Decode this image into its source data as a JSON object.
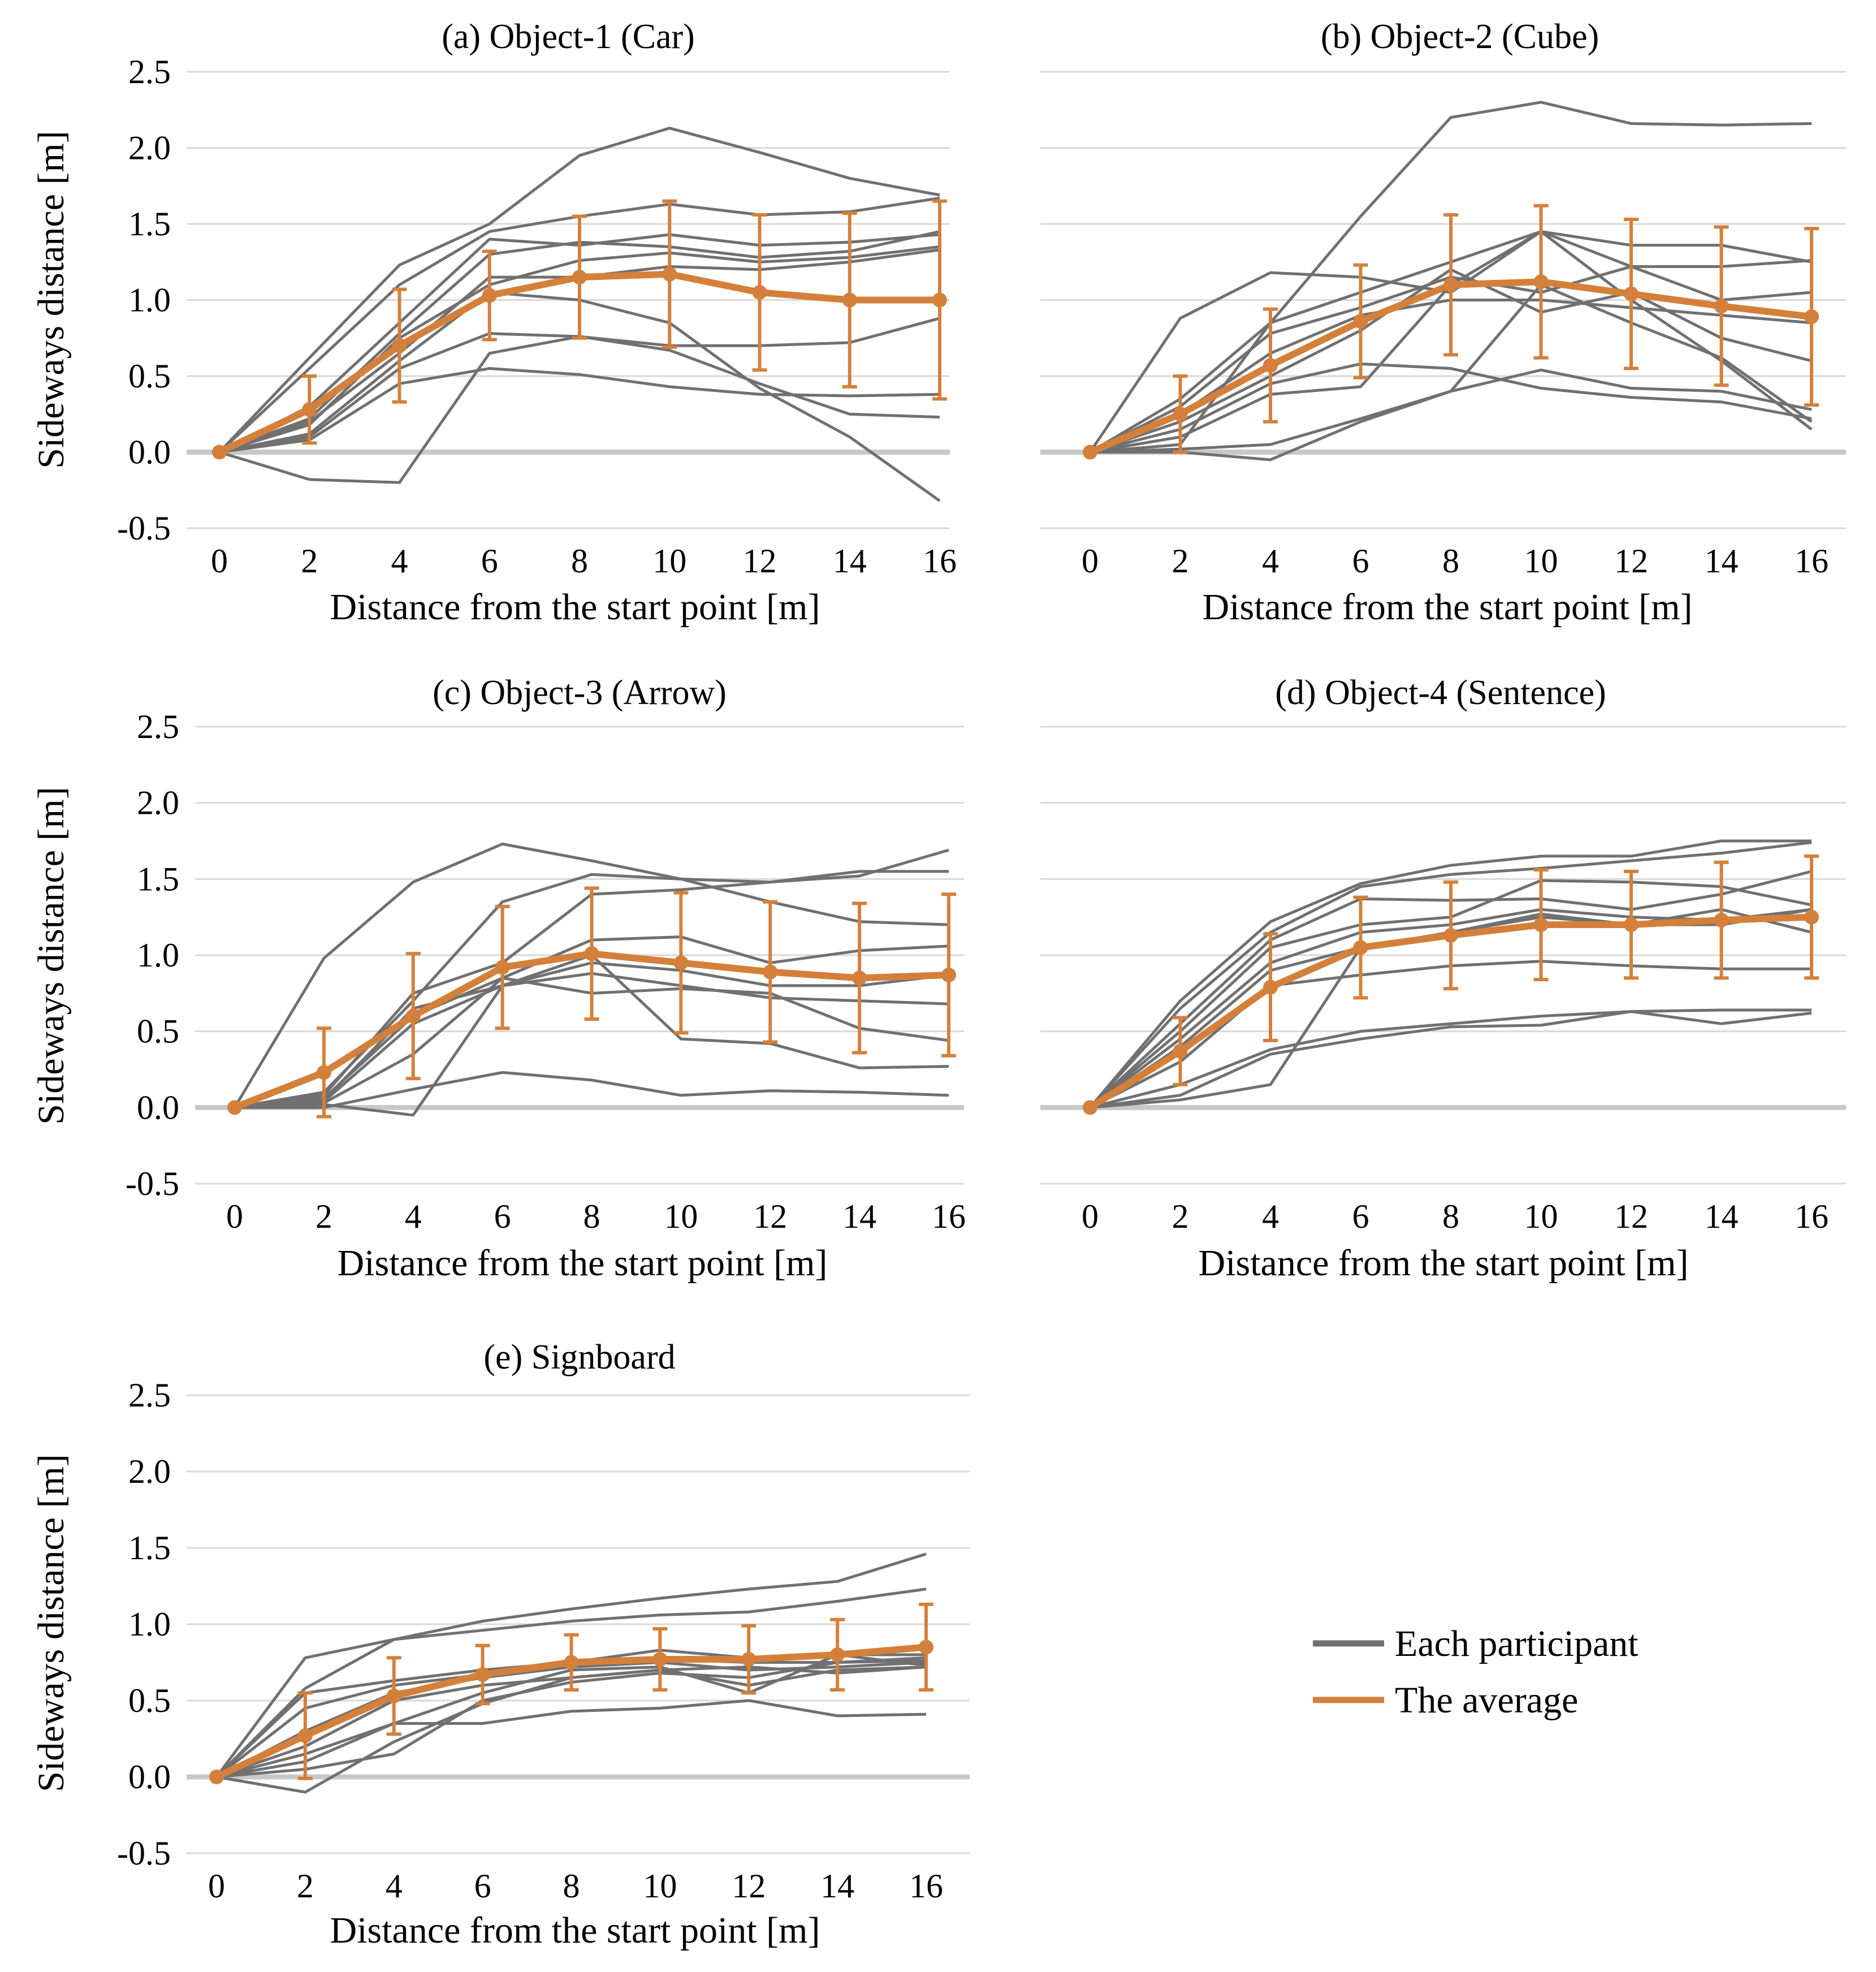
{
  "colors": {
    "participant": "#707070",
    "average": "#D4803A",
    "grid": "#D9D9D9",
    "zero": "#C8C8C8"
  },
  "legend": {
    "participant": "Each participant",
    "average": "The average"
  },
  "chart_data": [
    {
      "type": "line",
      "title": "(a) Object-1 (Car)",
      "xlabel": "Distance from the start point [m]",
      "ylabel": "Sideways distance [m]",
      "x": [
        0,
        2,
        4,
        6,
        8,
        10,
        12,
        14,
        16
      ],
      "xticklabels": [
        "0",
        "2",
        "4",
        "6",
        "8",
        "10",
        "12",
        "14",
        "16"
      ],
      "ylim": [
        -0.5,
        2.5
      ],
      "yticks": [
        -0.5,
        0.0,
        0.5,
        1.0,
        1.5,
        2.0,
        2.5
      ],
      "yticklabels": [
        "-0.5",
        "0.0",
        "0.5",
        "1.0",
        "1.5",
        "2.0",
        "2.5"
      ],
      "participants": [
        [
          0,
          0.62,
          1.23,
          1.5,
          1.95,
          2.13,
          1.97,
          1.8,
          1.69
        ],
        [
          0,
          0.55,
          1.1,
          1.45,
          1.55,
          1.63,
          1.56,
          1.58,
          1.67
        ],
        [
          0,
          0.3,
          0.85,
          1.4,
          1.36,
          1.43,
          1.36,
          1.38,
          1.43
        ],
        [
          0,
          0.22,
          0.78,
          1.3,
          1.38,
          1.35,
          1.28,
          1.32,
          1.45
        ],
        [
          0,
          0.18,
          0.75,
          1.1,
          1.26,
          1.31,
          1.25,
          1.28,
          1.35
        ],
        [
          0,
          0.2,
          0.65,
          1.15,
          1.15,
          1.22,
          1.2,
          1.25,
          1.33
        ],
        [
          0,
          0.12,
          0.6,
          1.05,
          1.0,
          0.85,
          0.42,
          0.1,
          -0.32
        ],
        [
          0,
          0.1,
          0.55,
          0.78,
          0.76,
          0.7,
          0.7,
          0.72,
          0.88
        ],
        [
          0,
          0.08,
          0.45,
          0.55,
          0.51,
          0.43,
          0.38,
          0.37,
          0.38
        ],
        [
          0,
          -0.18,
          -0.2,
          0.65,
          0.76,
          0.67,
          0.45,
          0.25,
          0.23
        ]
      ],
      "average": [
        0,
        0.28,
        0.7,
        1.03,
        1.15,
        1.17,
        1.05,
        1.0,
        1.0
      ],
      "error": [
        0,
        0.22,
        0.37,
        0.29,
        0.4,
        0.48,
        0.51,
        0.57,
        0.65
      ]
    },
    {
      "type": "line",
      "title": "(b) Object-2 (Cube)",
      "xlabel": "Distance from the start point [m]",
      "ylabel": "",
      "x": [
        0,
        2,
        4,
        6,
        8,
        10,
        12,
        14,
        16
      ],
      "xticklabels": [
        "0",
        "2",
        "4",
        "6",
        "8",
        "10",
        "12",
        "14",
        "16"
      ],
      "ylim": [
        -0.5,
        2.5
      ],
      "yticks": [
        -0.5,
        0.0,
        0.5,
        1.0,
        1.5,
        2.0,
        2.5
      ],
      "yticklabels": [],
      "participants": [
        [
          0,
          0.05,
          0.85,
          1.55,
          2.2,
          2.3,
          2.16,
          2.15,
          2.16
        ],
        [
          0,
          0.88,
          1.18,
          1.15,
          1.05,
          1.45,
          1.36,
          1.36,
          1.25
        ],
        [
          0,
          0.35,
          0.85,
          1.05,
          1.25,
          1.45,
          1.22,
          1.22,
          1.26
        ],
        [
          0,
          0.3,
          0.78,
          0.95,
          1.15,
          1.05,
          1.22,
          1.0,
          1.05
        ],
        [
          0,
          0.25,
          0.65,
          0.9,
          1.0,
          1.0,
          0.95,
          0.9,
          0.85
        ],
        [
          0,
          0.2,
          0.5,
          0.8,
          1.2,
          0.92,
          1.05,
          0.75,
          0.6
        ],
        [
          0,
          0.15,
          0.45,
          0.58,
          0.55,
          0.42,
          0.36,
          0.33,
          0.22
        ],
        [
          0,
          0.1,
          0.38,
          0.43,
          1.1,
          1.45,
          1.0,
          0.6,
          0.15
        ],
        [
          0,
          0.02,
          0.05,
          0.22,
          0.4,
          0.54,
          0.42,
          0.4,
          0.28
        ],
        [
          0,
          0.0,
          -0.05,
          0.2,
          0.4,
          1.1,
          0.85,
          0.62,
          0.2
        ]
      ],
      "average": [
        0,
        0.25,
        0.57,
        0.86,
        1.1,
        1.12,
        1.04,
        0.96,
        0.89
      ],
      "error": [
        0,
        0.25,
        0.37,
        0.37,
        0.46,
        0.5,
        0.49,
        0.52,
        0.58
      ]
    },
    {
      "type": "line",
      "title": "(c) Object-3 (Arrow)",
      "xlabel": "Distance from the start point [m]",
      "ylabel": "Sideways distance [m]",
      "x": [
        0,
        2,
        4,
        6,
        8,
        10,
        12,
        14,
        16
      ],
      "xticklabels": [
        "0",
        "2",
        "4",
        "6",
        "8",
        "10",
        "12",
        "14",
        "16"
      ],
      "ylim": [
        -0.5,
        2.5
      ],
      "yticks": [
        -0.5,
        0.0,
        0.5,
        1.0,
        1.5,
        2.0,
        2.5
      ],
      "yticklabels": [
        "-0.5",
        "0.0",
        "0.5",
        "1.0",
        "1.5",
        "2.0",
        "2.5"
      ],
      "participants": [
        [
          0,
          0.98,
          1.48,
          1.73,
          1.62,
          1.5,
          1.35,
          1.22,
          1.2
        ],
        [
          0,
          0.1,
          0.7,
          1.35,
          1.53,
          1.5,
          1.48,
          1.55,
          1.55
        ],
        [
          0,
          0.08,
          0.75,
          0.95,
          1.4,
          1.43,
          1.48,
          1.52,
          1.69
        ],
        [
          0,
          0.06,
          0.6,
          0.85,
          1.1,
          1.12,
          0.95,
          1.03,
          1.06
        ],
        [
          0,
          0.05,
          0.65,
          0.8,
          0.95,
          0.9,
          0.8,
          0.8,
          0.87
        ],
        [
          0,
          0.04,
          0.55,
          0.8,
          0.88,
          0.8,
          0.72,
          0.7,
          0.68
        ],
        [
          0,
          0.03,
          0.35,
          0.85,
          0.75,
          0.78,
          0.75,
          0.52,
          0.44
        ],
        [
          0,
          0.02,
          -0.05,
          0.8,
          1.0,
          0.45,
          0.42,
          0.26,
          0.27
        ],
        [
          0,
          0.0,
          0.12,
          0.23,
          0.18,
          0.08,
          0.11,
          0.1,
          0.08
        ]
      ],
      "average": [
        0,
        0.23,
        0.6,
        0.92,
        1.01,
        0.95,
        0.89,
        0.85,
        0.87
      ],
      "error": [
        0,
        0.29,
        0.41,
        0.4,
        0.43,
        0.46,
        0.46,
        0.49,
        0.53
      ]
    },
    {
      "type": "line",
      "title": "(d) Object-4 (Sentence)",
      "xlabel": "Distance from the start point [m]",
      "ylabel": "",
      "x": [
        0,
        2,
        4,
        6,
        8,
        10,
        12,
        14,
        16
      ],
      "xticklabels": [
        "0",
        "2",
        "4",
        "6",
        "8",
        "10",
        "12",
        "14",
        "16"
      ],
      "ylim": [
        -0.5,
        2.5
      ],
      "yticks": [
        -0.5,
        0.0,
        0.5,
        1.0,
        1.5,
        2.0,
        2.5
      ],
      "yticklabels": [],
      "participants": [
        [
          0,
          0.7,
          1.22,
          1.47,
          1.59,
          1.65,
          1.65,
          1.75,
          1.75
        ],
        [
          0,
          0.65,
          1.15,
          1.45,
          1.53,
          1.57,
          1.62,
          1.67,
          1.74
        ],
        [
          0,
          0.55,
          1.1,
          1.37,
          1.36,
          1.37,
          1.3,
          1.4,
          1.55
        ],
        [
          0,
          0.5,
          1.05,
          1.2,
          1.25,
          1.49,
          1.48,
          1.45,
          1.33
        ],
        [
          0,
          0.45,
          0.95,
          1.15,
          1.2,
          1.3,
          1.25,
          1.23,
          1.3
        ],
        [
          0,
          0.4,
          0.9,
          1.05,
          1.15,
          1.27,
          1.2,
          1.3,
          1.15
        ],
        [
          0,
          0.3,
          0.8,
          0.87,
          0.93,
          0.96,
          0.93,
          0.91,
          0.91
        ],
        [
          0,
          0.15,
          0.38,
          0.5,
          0.55,
          0.6,
          0.63,
          0.64,
          0.64
        ],
        [
          0,
          0.08,
          0.35,
          0.45,
          0.53,
          0.54,
          0.63,
          0.55,
          0.62
        ],
        [
          0,
          0.05,
          0.15,
          1.05,
          1.15,
          1.25,
          1.2,
          1.2,
          1.3
        ]
      ],
      "average": [
        0,
        0.37,
        0.79,
        1.05,
        1.13,
        1.2,
        1.2,
        1.23,
        1.25
      ],
      "error": [
        0,
        0.22,
        0.35,
        0.33,
        0.35,
        0.36,
        0.35,
        0.38,
        0.4
      ]
    },
    {
      "type": "line",
      "title": "(e) Signboard",
      "xlabel": "Distance from the start point [m]",
      "ylabel": "Sideways distance [m]",
      "x": [
        0,
        2,
        4,
        6,
        8,
        10,
        12,
        14,
        16
      ],
      "xticklabels": [
        "0",
        "2",
        "4",
        "6",
        "8",
        "10",
        "12",
        "14",
        "16"
      ],
      "ylim": [
        -0.5,
        2.5
      ],
      "yticks": [
        -0.5,
        0.0,
        0.5,
        1.0,
        1.5,
        2.0,
        2.5
      ],
      "yticklabels": [
        "-0.5",
        "0.0",
        "0.5",
        "1.0",
        "1.5",
        "2.0",
        "2.5"
      ],
      "participants": [
        [
          0,
          0.78,
          0.9,
          1.02,
          1.1,
          1.17,
          1.23,
          1.28,
          1.46
        ],
        [
          0,
          0.58,
          0.9,
          0.96,
          1.02,
          1.06,
          1.08,
          1.15,
          1.23
        ],
        [
          0,
          0.55,
          0.63,
          0.7,
          0.75,
          0.83,
          0.78,
          0.8,
          0.8
        ],
        [
          0,
          0.45,
          0.6,
          0.67,
          0.72,
          0.77,
          0.75,
          0.75,
          0.78
        ],
        [
          0,
          0.3,
          0.55,
          0.65,
          0.72,
          0.75,
          0.7,
          0.72,
          0.75
        ],
        [
          0,
          0.2,
          0.5,
          0.6,
          0.65,
          0.7,
          0.6,
          0.7,
          0.72
        ],
        [
          0,
          0.1,
          0.35,
          0.55,
          0.7,
          0.72,
          0.55,
          0.8,
          0.73
        ],
        [
          0,
          0.15,
          0.35,
          0.35,
          0.43,
          0.45,
          0.5,
          0.4,
          0.41
        ],
        [
          0,
          0.05,
          0.15,
          0.5,
          0.62,
          0.68,
          0.65,
          0.75,
          0.76
        ],
        [
          0,
          -0.1,
          0.23,
          0.48,
          0.65,
          0.7,
          0.72,
          0.68,
          0.72
        ]
      ],
      "average": [
        0,
        0.27,
        0.53,
        0.67,
        0.75,
        0.77,
        0.77,
        0.8,
        0.85
      ],
      "error": [
        0,
        0.28,
        0.25,
        0.19,
        0.18,
        0.2,
        0.22,
        0.23,
        0.28
      ]
    }
  ]
}
